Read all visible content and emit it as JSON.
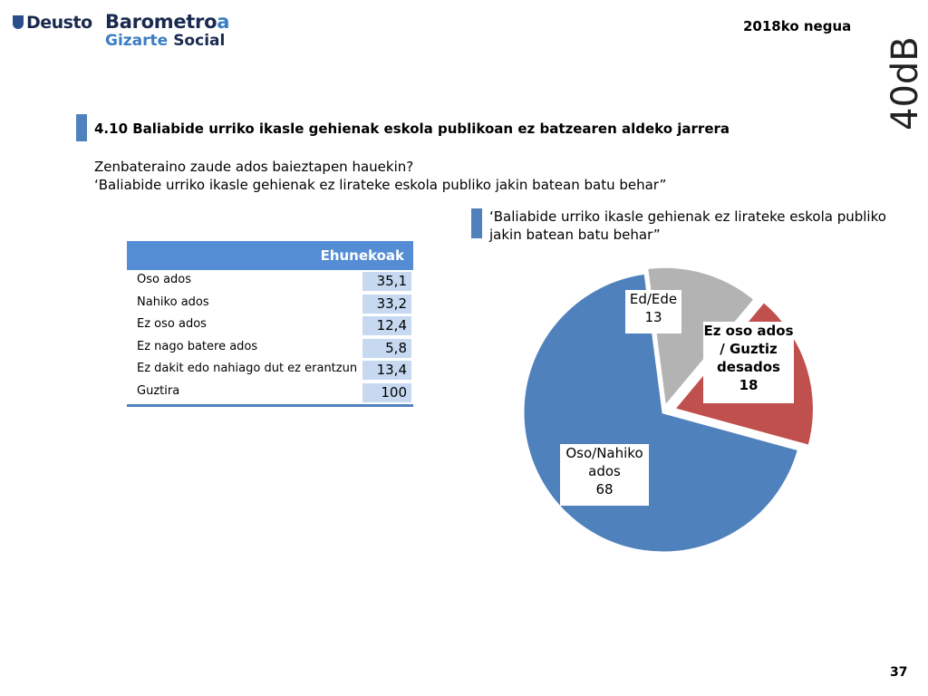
{
  "header": {
    "logo_deusto": "Deusto",
    "logo_barometro_main": "Barometro",
    "logo_barometro_a": "a",
    "logo_gizarte": "Gizarte",
    "logo_social": "Social",
    "season": "2018ko negua",
    "brand": "40dB."
  },
  "section": {
    "title": "4.10 Baliabide urriko ikasle gehienak eskola publikoan ez batzearen aldeko jarrera",
    "question_line1": "Zenbateraino zaude ados baieztapen hauekin?",
    "question_line2": "‘Baliabide urriko ikasle gehienak ez lirateke eskola publiko jakin batean batu behar”"
  },
  "table": {
    "header": "Ehunekoak",
    "rows": [
      {
        "label": "Oso ados",
        "value": "35,1"
      },
      {
        "label": "Nahiko ados",
        "value": "33,2"
      },
      {
        "label": "Ez oso ados",
        "value": "12,4"
      },
      {
        "label": "Ez nago batere ados",
        "value": "5,8"
      },
      {
        "label": "Ez dakit edo nahiago dut ez erantzun",
        "value": "13,4"
      },
      {
        "label": "Guztira",
        "value": "100"
      }
    ]
  },
  "chart_data": {
    "type": "pie",
    "title_line1": "‘Baliabide urriko ikasle gehienak ez lirateke eskola publiko",
    "title_line2": "jakin batean batu behar”",
    "slices": [
      {
        "label_lines": [
          "Ed/Ede",
          "13"
        ],
        "value": 13,
        "color": "#b3b3b3",
        "bold": false
      },
      {
        "label_lines": [
          "Ez oso ados",
          "/ Guztiz",
          "desados",
          "18"
        ],
        "value": 18,
        "color": "#c0504d",
        "bold": true
      },
      {
        "label_lines": [
          "Oso/Nahiko",
          "ados",
          "68"
        ],
        "value": 68,
        "color": "#4f81bd",
        "bold": false
      }
    ]
  },
  "footer": {
    "page_number": "37"
  }
}
